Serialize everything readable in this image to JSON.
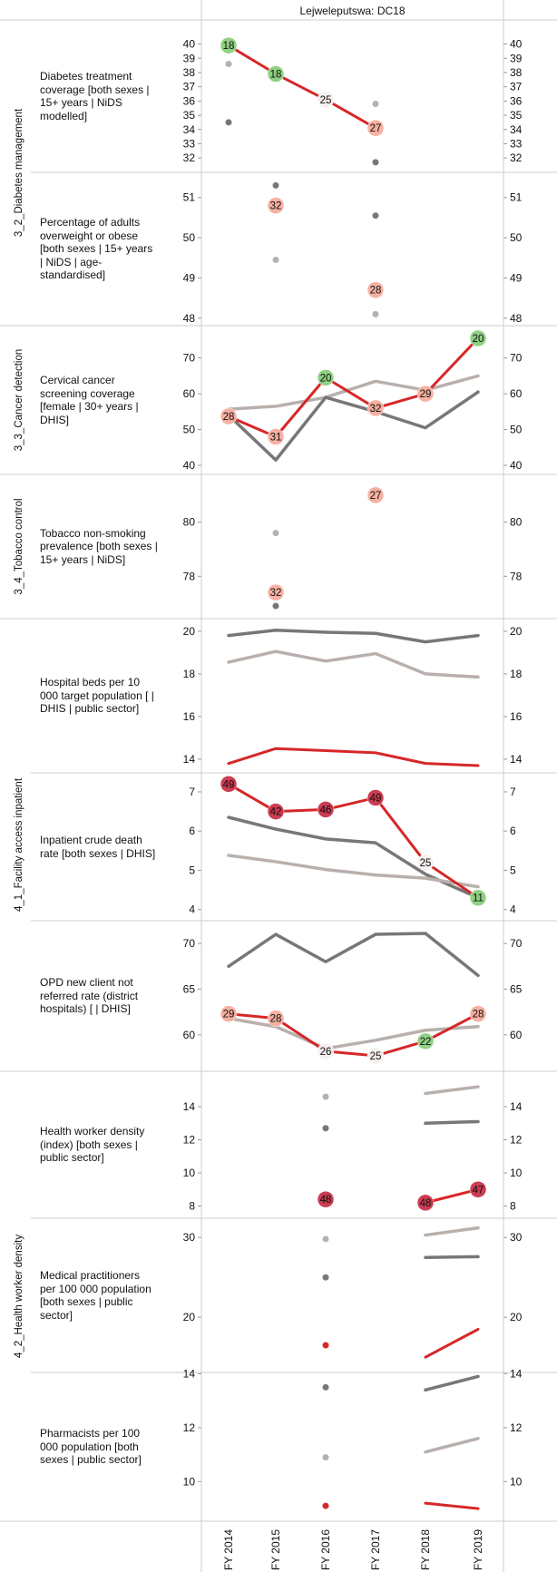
{
  "header": {
    "title": "Lejweleputswa: DC18"
  },
  "x_axis": {
    "labels": [
      "FY 2014",
      "FY 2015",
      "FY 2016",
      "FY 2017",
      "FY 2018",
      "FY 2019"
    ]
  },
  "colors": {
    "district": "#d62728",
    "comparison_light": "#b8b0ac",
    "comparison_dark": "#777777",
    "green": "#8bd07e",
    "salmon": "#f6ad9e",
    "crimson": "#c9334a",
    "grid": "#cccccc"
  },
  "groups": [
    {
      "label": "3_2_Diabetes management",
      "panels": [
        0,
        1
      ]
    },
    {
      "label": "3_3_Cancer detection",
      "panels": [
        2
      ]
    },
    {
      "label": "3_4_Tobacco control",
      "panels": [
        3
      ]
    },
    {
      "label": "4_1_Facility access inpatient",
      "panels": [
        4,
        5,
        6
      ]
    },
    {
      "label": "4_2_Health worker density",
      "panels": [
        7,
        8,
        9
      ]
    }
  ],
  "chart_data": [
    {
      "type": "line",
      "label": "Diabetes treatment coverage [both sexes | 15+ years | NiDS modelled]",
      "ylim": [
        31.5,
        40.8
      ],
      "ticks": [
        32,
        33,
        34,
        35,
        36,
        37,
        38,
        39,
        40
      ],
      "series": [
        {
          "role": "light",
          "values": [
            38.6,
            null,
            null,
            35.8,
            null,
            null
          ]
        },
        {
          "role": "dark",
          "values": [
            34.5,
            null,
            null,
            31.7,
            null,
            null
          ]
        },
        {
          "role": "district",
          "values": [
            39.9,
            37.9,
            36.1,
            34.1,
            null,
            null
          ]
        }
      ],
      "markers": [
        {
          "x": 0,
          "y": 39.9,
          "rank": "18",
          "color": "green"
        },
        {
          "x": 1,
          "y": 37.9,
          "rank": "18",
          "color": "green"
        },
        {
          "x": 2,
          "y": 36.1,
          "rank": "25",
          "color": "white"
        },
        {
          "x": 3,
          "y": 34.1,
          "rank": "27",
          "color": "salmon"
        }
      ]
    },
    {
      "type": "scatter",
      "label": "Percentage of adults overweight or obese [both sexes | 15+ years | NiDS | age-standardised]",
      "ylim": [
        47.95,
        51.4
      ],
      "ticks": [
        48,
        49,
        50,
        51
      ],
      "series": [
        {
          "role": "light",
          "values": [
            null,
            49.45,
            null,
            48.1,
            null,
            null
          ]
        },
        {
          "role": "dark",
          "values": [
            null,
            51.3,
            null,
            50.55,
            null,
            null
          ]
        },
        {
          "role": "district",
          "values": [
            null,
            null,
            null,
            null,
            null,
            null
          ]
        }
      ],
      "markers": [
        {
          "x": 1,
          "y": 50.8,
          "rank": "32",
          "color": "salmon"
        },
        {
          "x": 3,
          "y": 48.7,
          "rank": "28",
          "color": "salmon"
        }
      ]
    },
    {
      "type": "line",
      "label": "Cervical cancer screening coverage [female | 30+ years | DHIS]",
      "ylim": [
        39,
        76.5
      ],
      "ticks": [
        40,
        50,
        60,
        70
      ],
      "series": [
        {
          "role": "light",
          "values": [
            55.7,
            56.5,
            59,
            63.5,
            61,
            65
          ]
        },
        {
          "role": "dark",
          "values": [
            54,
            41.5,
            59,
            55,
            50.5,
            60.5
          ]
        },
        {
          "role": "district",
          "values": [
            53.7,
            48,
            64.5,
            56,
            60,
            75.5
          ]
        }
      ],
      "markers": [
        {
          "x": 0,
          "y": 53.7,
          "rank": "28",
          "color": "salmon"
        },
        {
          "x": 1,
          "y": 48,
          "rank": "31",
          "color": "salmon"
        },
        {
          "x": 2,
          "y": 64.5,
          "rank": "20",
          "color": "green"
        },
        {
          "x": 3,
          "y": 56,
          "rank": "32",
          "color": "salmon"
        },
        {
          "x": 4,
          "y": 60,
          "rank": "29",
          "color": "salmon"
        },
        {
          "x": 5,
          "y": 75.5,
          "rank": "20",
          "color": "green"
        }
      ]
    },
    {
      "type": "scatter",
      "label": "Tobacco non-smoking prevalence [both sexes | 15+ years | NiDS]",
      "ylim": [
        76.7,
        81.5
      ],
      "ticks": [
        78,
        80
      ],
      "series": [
        {
          "role": "light",
          "values": [
            null,
            79.6,
            null,
            81.2,
            null,
            null
          ]
        },
        {
          "role": "dark",
          "values": [
            null,
            76.9,
            null,
            null,
            null,
            null
          ]
        },
        {
          "role": "district",
          "values": [
            null,
            null,
            null,
            null,
            null,
            null
          ]
        }
      ],
      "markers": [
        {
          "x": 1,
          "y": 77.4,
          "rank": "32",
          "color": "salmon"
        },
        {
          "x": 3,
          "y": 81,
          "rank": "27",
          "color": "salmon"
        }
      ]
    },
    {
      "type": "line",
      "label": "Hospital beds per 10 000 target population [ | DHIS | public sector]",
      "ylim": [
        13.7,
        20.25
      ],
      "ticks": [
        14,
        16,
        18,
        20
      ],
      "series": [
        {
          "role": "dark",
          "values": [
            19.8,
            20.05,
            19.95,
            19.9,
            19.5,
            19.8
          ]
        },
        {
          "role": "light",
          "values": [
            18.55,
            19.05,
            18.6,
            18.95,
            18,
            17.85
          ]
        },
        {
          "role": "district",
          "values": [
            13.8,
            14.5,
            14.4,
            14.3,
            13.8,
            13.7
          ]
        }
      ],
      "markers": []
    },
    {
      "type": "line",
      "label": "Inpatient crude death rate [both sexes | DHIS]",
      "ylim": [
        3.9,
        7.3
      ],
      "ticks": [
        4,
        5,
        6,
        7
      ],
      "series": [
        {
          "role": "dark",
          "values": [
            6.35,
            6.05,
            5.8,
            5.7,
            4.9,
            4.3
          ]
        },
        {
          "role": "light",
          "values": [
            5.38,
            5.22,
            5.02,
            4.88,
            4.8,
            4.58
          ]
        },
        {
          "role": "district",
          "values": [
            7.2,
            6.5,
            6.55,
            6.85,
            5.2,
            4.3
          ]
        }
      ],
      "markers": [
        {
          "x": 0,
          "y": 7.2,
          "rank": "49",
          "color": "crimson"
        },
        {
          "x": 1,
          "y": 6.5,
          "rank": "42",
          "color": "crimson"
        },
        {
          "x": 2,
          "y": 6.55,
          "rank": "46",
          "color": "crimson"
        },
        {
          "x": 3,
          "y": 6.85,
          "rank": "49",
          "color": "crimson"
        },
        {
          "x": 4,
          "y": 5.2,
          "rank": "25",
          "color": "white"
        },
        {
          "x": 5,
          "y": 4.3,
          "rank": "11",
          "color": "green"
        }
      ]
    },
    {
      "type": "line",
      "label": "OPD new client not referred rate (district hospitals) [ | DHIS]",
      "ylim": [
        56.8,
        71.7
      ],
      "ticks": [
        60,
        65,
        70
      ],
      "series": [
        {
          "role": "dark",
          "values": [
            67.5,
            71,
            68,
            71,
            71.1,
            66.5
          ]
        },
        {
          "role": "light",
          "values": [
            61.8,
            60.9,
            58.5,
            59.4,
            60.5,
            60.9
          ]
        },
        {
          "role": "district",
          "values": [
            62.3,
            61.8,
            58.2,
            57.7,
            59.3,
            62.3
          ]
        }
      ],
      "markers": [
        {
          "x": 0,
          "y": 62.3,
          "rank": "29",
          "color": "salmon"
        },
        {
          "x": 1,
          "y": 61.8,
          "rank": "28",
          "color": "salmon"
        },
        {
          "x": 2,
          "y": 58.2,
          "rank": "26",
          "color": "white"
        },
        {
          "x": 3,
          "y": 57.7,
          "rank": "25",
          "color": "white"
        },
        {
          "x": 4,
          "y": 59.3,
          "rank": "22",
          "color": "green"
        },
        {
          "x": 5,
          "y": 62.3,
          "rank": "28",
          "color": "salmon"
        }
      ]
    },
    {
      "type": "line",
      "label": "Health worker density (index) [both sexes | public sector]",
      "ylim": [
        7.7,
        15.7
      ],
      "ticks": [
        8,
        10,
        12,
        14
      ],
      "series": [
        {
          "role": "light",
          "values": [
            null,
            null,
            14.6,
            null,
            14.8,
            15.2
          ]
        },
        {
          "role": "dark",
          "values": [
            null,
            null,
            12.7,
            null,
            13,
            13.1
          ]
        },
        {
          "role": "district",
          "values": [
            null,
            null,
            8.4,
            null,
            8.2,
            9
          ]
        }
      ],
      "markers": [
        {
          "x": 2,
          "y": 8.4,
          "rank": "48",
          "color": "crimson"
        },
        {
          "x": 4,
          "y": 8.2,
          "rank": "48",
          "color": "crimson"
        },
        {
          "x": 5,
          "y": 9,
          "rank": "47",
          "color": "crimson"
        }
      ]
    },
    {
      "type": "line",
      "label": "Medical practitioners per 100 000 population [both sexes | public sector]",
      "ylim": [
        14,
        31.5
      ],
      "ticks": [
        20,
        30
      ],
      "series": [
        {
          "role": "light",
          "values": [
            null,
            null,
            29.8,
            null,
            30.3,
            31.2
          ]
        },
        {
          "role": "dark",
          "values": [
            null,
            null,
            25,
            null,
            27.5,
            27.6
          ]
        },
        {
          "role": "district",
          "values": [
            null,
            null,
            16.5,
            null,
            15,
            18.5
          ]
        }
      ],
      "markers": []
    },
    {
      "type": "line",
      "label": "Pharmacists per 100 000 population [both sexes | public sector]",
      "ylim": [
        8.8,
        14.05
      ],
      "ticks": [
        10,
        12,
        14
      ],
      "series": [
        {
          "role": "dark",
          "values": [
            null,
            null,
            13.5,
            null,
            13.4,
            13.9
          ]
        },
        {
          "role": "light",
          "values": [
            null,
            null,
            10.9,
            null,
            11.1,
            11.6
          ]
        },
        {
          "role": "district",
          "values": [
            null,
            null,
            9.1,
            null,
            9.2,
            9
          ]
        }
      ],
      "markers": []
    }
  ]
}
